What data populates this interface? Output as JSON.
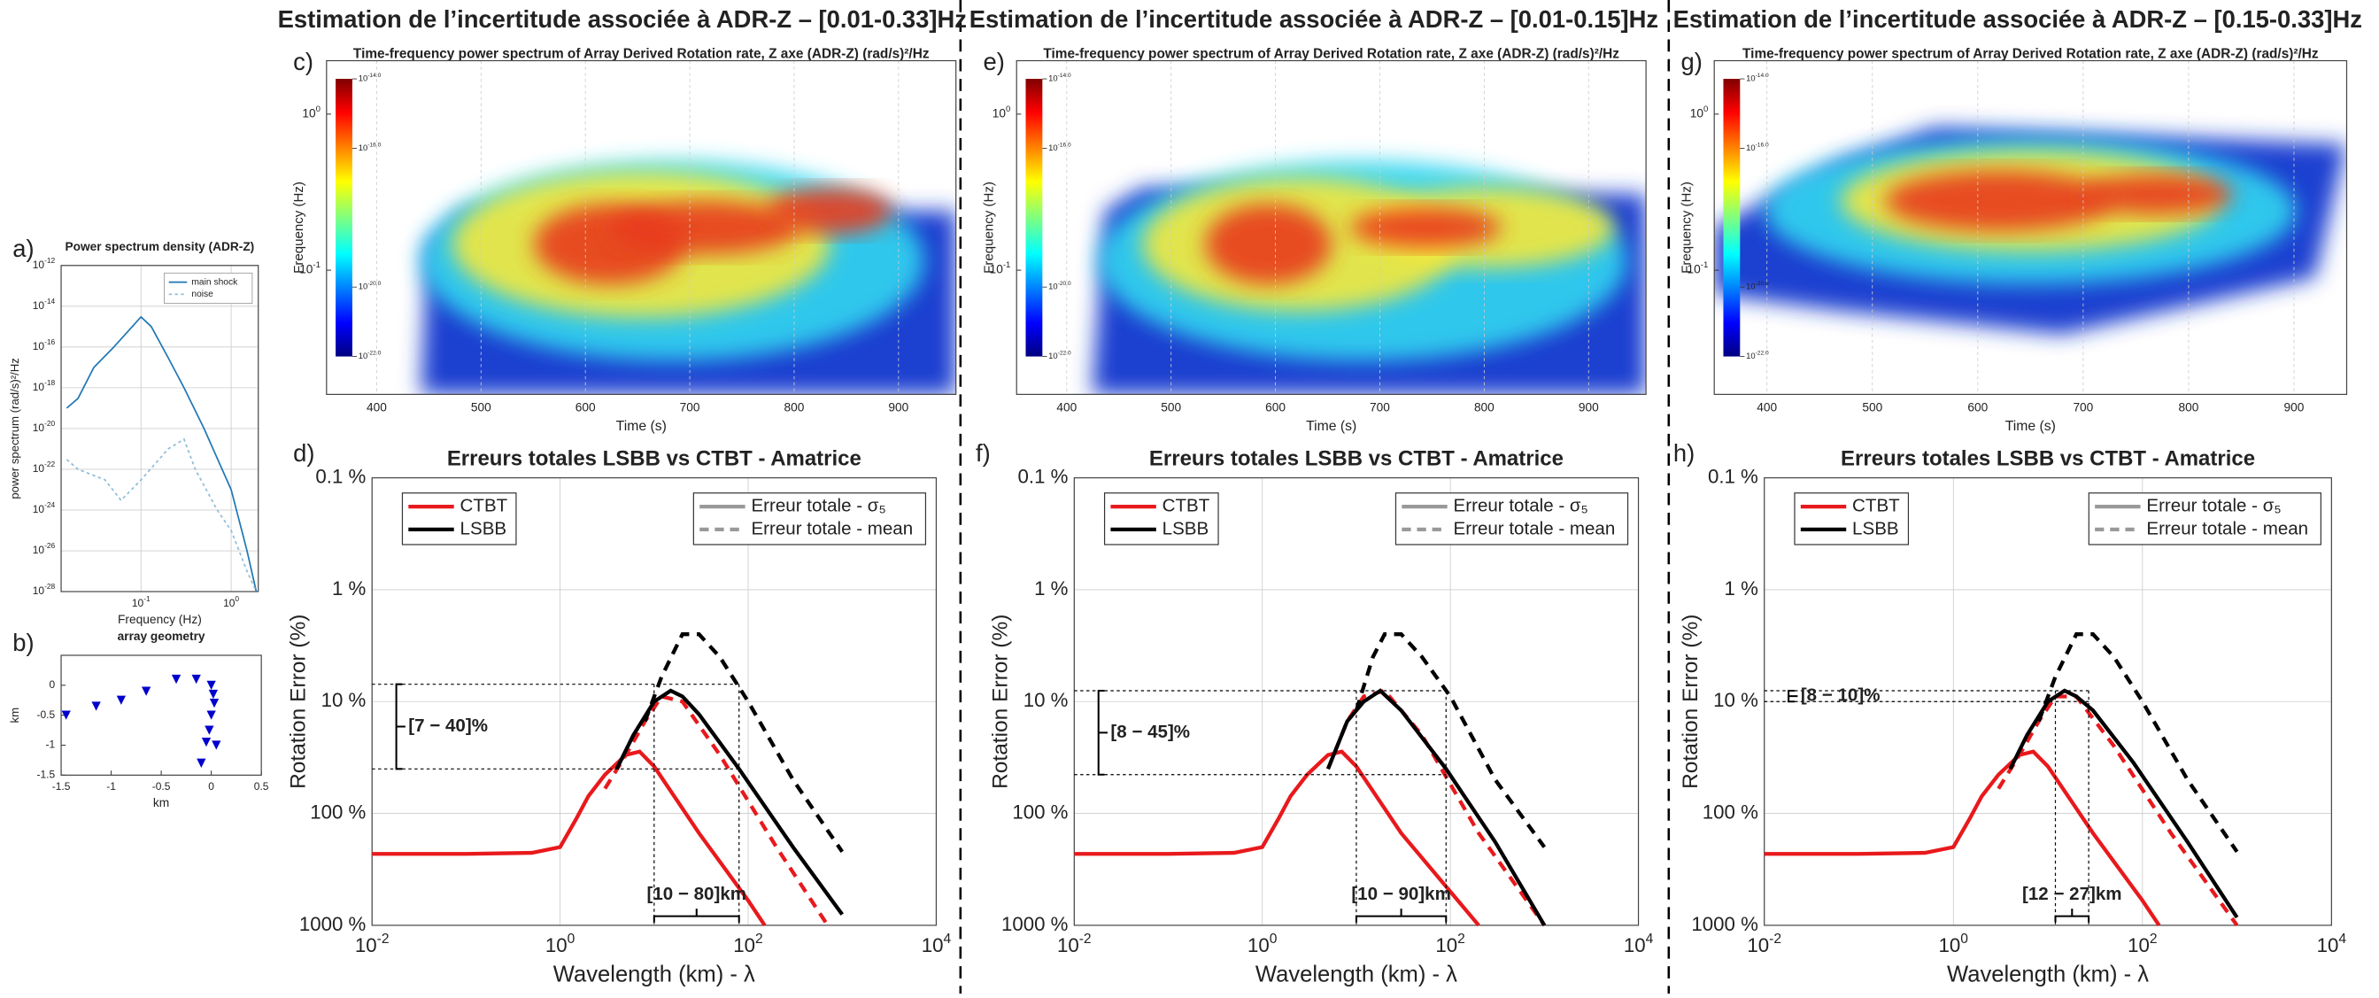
{
  "headers": [
    "Estimation de l’incertitude associée à ADR-Z – [0.01-0.33]Hz",
    "Estimation de l’incertitude associée à ADR-Z – [0.01-0.15]Hz",
    "Estimation de l’incertitude associée à ADR-Z – [0.15-0.33]Hz"
  ],
  "chart_data": [
    {
      "type": "line",
      "label": "a)",
      "title": "Power spectrum density (ADR-Z)",
      "xlabel": "Frequency (Hz)",
      "ylabel": "power spectrum (rad/s)²/Hz",
      "xscale": "log",
      "yscale": "log",
      "grid": true,
      "legend": "upper right",
      "xlim": [
        0.013,
        2
      ],
      "ylim": [
        1e-28,
        1e-12
      ],
      "xticks": [
        {
          "value": 0.1,
          "label": "10^-1"
        },
        {
          "value": 1,
          "label": "10^0"
        }
      ],
      "yticks": [
        {
          "value": 1e-28,
          "label": "10^-28"
        },
        {
          "value": 1e-26,
          "label": "10^-26"
        },
        {
          "value": 1e-24,
          "label": "10^-24"
        },
        {
          "value": 1e-22,
          "label": "10^-22"
        },
        {
          "value": 1e-20,
          "label": "10^-20"
        },
        {
          "value": 1e-18,
          "label": "10^-18"
        },
        {
          "value": 1e-16,
          "label": "10^-16"
        },
        {
          "value": 1e-14,
          "label": "10^-14"
        },
        {
          "value": 1e-12,
          "label": "10^-12"
        }
      ],
      "series": [
        {
          "name": "main shock",
          "color": "#1f77b4",
          "dash": false,
          "x": [
            0.015,
            0.02,
            0.03,
            0.05,
            0.08,
            0.1,
            0.13,
            0.2,
            0.3,
            0.5,
            1,
            1.5,
            1.9
          ],
          "values": [
            1e-19,
            3e-19,
            1e-17,
            1e-16,
            1e-15,
            3e-15,
            1e-15,
            3e-17,
            1e-18,
            1e-20,
            1e-23,
            1e-26,
            1e-28
          ]
        },
        {
          "name": "noise",
          "color": "#8fbcd8",
          "dash": true,
          "x": [
            0.015,
            0.02,
            0.04,
            0.06,
            0.1,
            0.2,
            0.3,
            0.4,
            0.7,
            1,
            1.5,
            1.9
          ],
          "values": [
            3e-22,
            1e-22,
            3e-23,
            3e-24,
            3e-23,
            1e-21,
            3e-21,
            1e-22,
            1e-24,
            1e-25,
            1e-27,
            1e-28
          ]
        }
      ]
    },
    {
      "type": "scatter",
      "label": "b)",
      "title": "array geometry",
      "xlabel": "km",
      "ylabel": "km",
      "xlim": [
        -1.5,
        0.5
      ],
      "ylim": [
        -1.5,
        0.5
      ],
      "grid": false,
      "xticks": [
        -1.5,
        -1,
        -0.5,
        0,
        0.5
      ],
      "yticks": [
        -1.5,
        -1,
        -0.5,
        0
      ],
      "series": [
        {
          "color": "#0000cc",
          "x": [
            -1.45,
            -1.15,
            -0.9,
            -0.65,
            -0.35,
            -0.15,
            0,
            0.02,
            0.03,
            0,
            -0.02,
            0.05,
            -0.05,
            -0.1
          ],
          "values": [
            -0.5,
            -0.35,
            -0.25,
            -0.1,
            0.1,
            0.1,
            0,
            -0.15,
            -0.3,
            -0.5,
            -0.75,
            -1,
            -0.95,
            -1.3
          ]
        }
      ]
    },
    {
      "type": "heatmap",
      "label": "c)",
      "title": "Time-frequency power spectrum of Array Derived Rotation rate, Z axe (ADR-Z) (rad/s)²/Hz",
      "xlabel": "Time (s)",
      "ylabel": "Frequency (Hz)",
      "yscale": "log",
      "xlim": [
        352,
        955
      ],
      "ylim": [
        0.016,
        2.2
      ],
      "xticks": [
        400,
        500,
        600,
        700,
        800,
        900
      ],
      "yticks": [
        {
          "value": 0.1,
          "label": "10^-1"
        },
        {
          "value": 1,
          "label": "10^0"
        }
      ],
      "clim": [
        -22,
        -14
      ],
      "cticks": [
        {
          "value": -14,
          "label": "10^-14.0"
        },
        {
          "value": -16,
          "label": "10^-16.0"
        },
        {
          "value": -20,
          "label": "10^-20.0"
        },
        {
          "value": -22,
          "label": "10^-22.0"
        }
      ]
    },
    {
      "type": "line",
      "label": "d)",
      "title": "Erreurs totales LSBB vs CTBT - Amatrice",
      "xlabel": "Wavelength (km) - λ",
      "ylabel": "Rotation Error (%)",
      "xscale": "log",
      "yscale": "log",
      "yreversed": true,
      "grid": true,
      "xlim": [
        0.01,
        10000
      ],
      "ylim": [
        0.1,
        1000
      ],
      "xticks": [
        {
          "value": 0.01,
          "label": "10^-2"
        },
        {
          "value": 1,
          "label": "10^0"
        },
        {
          "value": 100,
          "label": "10^2"
        },
        {
          "value": 10000,
          "label": "10^4"
        }
      ],
      "yticks": [
        {
          "value": 0.1,
          "label": "0.1 %"
        },
        {
          "value": 1,
          "label": "1 %"
        },
        {
          "value": 10,
          "label": "10 %"
        },
        {
          "value": 100,
          "label": "100 %"
        },
        {
          "value": 1000,
          "label": "1000 %"
        }
      ],
      "legend_colors": [
        {
          "label": "CTBT",
          "color": "#e8191c"
        },
        {
          "label": "LSBB",
          "color": "#000000"
        }
      ],
      "legend_styles": [
        {
          "label": "Erreur totale - σ₅",
          "dash": false
        },
        {
          "label": "Erreur totale - mean",
          "dash": true
        }
      ],
      "error_range": [
        7,
        40
      ],
      "error_label": "[7 − 40]%",
      "wavelength_range": [
        10,
        80
      ],
      "wavelength_label": "[10 − 80]km",
      "series": [
        {
          "color": "#e8191c",
          "dash": false,
          "x": [
            0.01,
            0.1,
            0.5,
            1,
            1.5,
            2,
            3,
            5,
            7,
            10,
            30,
            100,
            150
          ],
          "values": [
            230,
            230,
            225,
            200,
            110,
            70,
            45,
            30,
            28,
            38,
            150,
            600,
            1000
          ]
        },
        {
          "color": "#e8191c",
          "dash": true,
          "x": [
            3,
            5,
            8,
            12,
            20,
            50,
            200,
            700
          ],
          "values": [
            60,
            30,
            15,
            9,
            10,
            30,
            200,
            1000
          ]
        },
        {
          "color": "#000000",
          "dash": false,
          "x": [
            4,
            6,
            10,
            15,
            20,
            30,
            80,
            300,
            1000
          ],
          "values": [
            40,
            20,
            10,
            8,
            9,
            13,
            40,
            200,
            800
          ]
        },
        {
          "color": "#000000",
          "dash": true,
          "x": [
            8,
            12,
            20,
            30,
            50,
            100,
            300,
            1000
          ],
          "values": [
            15,
            6,
            2.5,
            2.5,
            4,
            10,
            50,
            220
          ]
        }
      ]
    },
    {
      "type": "heatmap",
      "label": "e)",
      "title": "Time-frequency power spectrum of Array Derived Rotation rate, Z axe (ADR-Z) (rad/s)²/Hz",
      "xlabel": "Time (s)",
      "ylabel": "Frequency (Hz)",
      "yscale": "log",
      "xlim": [
        352,
        955
      ],
      "ylim": [
        0.016,
        2.2
      ],
      "xticks": [
        400,
        500,
        600,
        700,
        800,
        900
      ],
      "yticks": [
        {
          "value": 0.1,
          "label": "10^-1"
        },
        {
          "value": 1,
          "label": "10^0"
        }
      ],
      "clim": [
        -22,
        -14
      ],
      "cticks": [
        {
          "value": -14,
          "label": "10^-14.0"
        },
        {
          "value": -16,
          "label": "10^-16.0"
        },
        {
          "value": -20,
          "label": "10^-20.0"
        },
        {
          "value": -22,
          "label": "10^-22.0"
        }
      ]
    },
    {
      "type": "line",
      "label": "f)",
      "title": "Erreurs totales LSBB vs CTBT - Amatrice",
      "xlabel": "Wavelength (km) - λ",
      "ylabel": "Rotation Error (%)",
      "xscale": "log",
      "yscale": "log",
      "yreversed": true,
      "grid": true,
      "xlim": [
        0.01,
        10000
      ],
      "ylim": [
        0.1,
        1000
      ],
      "xticks": [
        {
          "value": 0.01,
          "label": "10^-2"
        },
        {
          "value": 1,
          "label": "10^0"
        },
        {
          "value": 100,
          "label": "10^2"
        },
        {
          "value": 10000,
          "label": "10^4"
        }
      ],
      "yticks": [
        {
          "value": 0.1,
          "label": "0.1 %"
        },
        {
          "value": 1,
          "label": "1 %"
        },
        {
          "value": 10,
          "label": "10 %"
        },
        {
          "value": 100,
          "label": "100 %"
        },
        {
          "value": 1000,
          "label": "1000 %"
        }
      ],
      "legend_colors": [
        {
          "label": "CTBT",
          "color": "#e8191c"
        },
        {
          "label": "LSBB",
          "color": "#000000"
        }
      ],
      "legend_styles": [
        {
          "label": "Erreur totale - σ₅",
          "dash": false
        },
        {
          "label": "Erreur totale - mean",
          "dash": true
        }
      ],
      "error_range": [
        8,
        45
      ],
      "error_label": "[8 − 45]%",
      "wavelength_range": [
        10,
        90
      ],
      "wavelength_label": "[10 − 90]km",
      "series": [
        {
          "color": "#e8191c",
          "dash": false,
          "x": [
            0.01,
            0.1,
            0.5,
            1,
            1.5,
            2,
            3,
            5,
            7,
            10,
            30,
            100,
            200
          ],
          "values": [
            230,
            230,
            225,
            200,
            110,
            70,
            45,
            30,
            28,
            38,
            150,
            500,
            1000
          ]
        },
        {
          "color": "#e8191c",
          "dash": true,
          "x": [
            5,
            8,
            12,
            20,
            50,
            200,
            1000
          ],
          "values": [
            40,
            15,
            9,
            8,
            20,
            150,
            1000
          ]
        },
        {
          "color": "#000000",
          "dash": false,
          "x": [
            5,
            8,
            12,
            18,
            30,
            90,
            300,
            1000
          ],
          "values": [
            40,
            15,
            10,
            8,
            12,
            40,
            180,
            1000
          ]
        },
        {
          "color": "#000000",
          "dash": true,
          "x": [
            10,
            15,
            20,
            30,
            50,
            100,
            300,
            1000
          ],
          "values": [
            12,
            4,
            2.5,
            2.5,
            4,
            9,
            50,
            200
          ]
        }
      ]
    },
    {
      "type": "heatmap",
      "label": "g)",
      "title": "Time-frequency power spectrum of Array Derived Rotation rate, Z axe (ADR-Z) (rad/s)²/Hz",
      "xlabel": "Time (s)",
      "ylabel": "Frequency (Hz)",
      "yscale": "log",
      "xlim": [
        350,
        950
      ],
      "ylim": [
        0.016,
        2.2
      ],
      "xticks": [
        400,
        500,
        600,
        700,
        800,
        900
      ],
      "yticks": [
        {
          "value": 0.1,
          "label": "10^-1"
        },
        {
          "value": 1,
          "label": "10^0"
        }
      ],
      "clim": [
        -22,
        -14
      ],
      "cticks": [
        {
          "value": -14,
          "label": "10^-14.0"
        },
        {
          "value": -16,
          "label": "10^-16.0"
        },
        {
          "value": -20,
          "label": "10^-20.0"
        },
        {
          "value": -22,
          "label": "10^-22.0"
        }
      ]
    },
    {
      "type": "line",
      "label": "h)",
      "title": "Erreurs totales LSBB vs CTBT - Amatrice",
      "xlabel": "Wavelength (km) - λ",
      "ylabel": "Rotation Error (%)",
      "xscale": "log",
      "yscale": "log",
      "yreversed": true,
      "grid": true,
      "xlim": [
        0.01,
        10000
      ],
      "ylim": [
        0.1,
        1000
      ],
      "xticks": [
        {
          "value": 0.01,
          "label": "10^-2"
        },
        {
          "value": 1,
          "label": "10^0"
        },
        {
          "value": 100,
          "label": "10^2"
        },
        {
          "value": 10000,
          "label": "10^4"
        }
      ],
      "yticks": [
        {
          "value": 0.1,
          "label": "0.1 %"
        },
        {
          "value": 1,
          "label": "1 %"
        },
        {
          "value": 10,
          "label": "10 %"
        },
        {
          "value": 100,
          "label": "100 %"
        },
        {
          "value": 1000,
          "label": "1000 %"
        }
      ],
      "legend_colors": [
        {
          "label": "CTBT",
          "color": "#e8191c"
        },
        {
          "label": "LSBB",
          "color": "#000000"
        }
      ],
      "legend_styles": [
        {
          "label": "Erreur totale - σ₅",
          "dash": false
        },
        {
          "label": "Erreur totale - mean",
          "dash": true
        }
      ],
      "error_range": [
        8,
        10
      ],
      "error_label": "[8 − 10]%",
      "wavelength_range": [
        12,
        27
      ],
      "wavelength_label": "[12 − 27]km",
      "series": [
        {
          "color": "#e8191c",
          "dash": false,
          "x": [
            0.01,
            0.1,
            0.5,
            1,
            1.5,
            2,
            3,
            5,
            7,
            10,
            30,
            100,
            150
          ],
          "values": [
            230,
            230,
            225,
            200,
            110,
            70,
            45,
            30,
            28,
            38,
            150,
            600,
            1000
          ]
        },
        {
          "color": "#e8191c",
          "dash": true,
          "x": [
            3,
            5,
            8,
            12,
            20,
            50,
            200,
            1000
          ],
          "values": [
            60,
            30,
            15,
            9,
            9,
            25,
            150,
            1000
          ]
        },
        {
          "color": "#000000",
          "dash": false,
          "x": [
            4,
            6,
            10,
            15,
            20,
            30,
            80,
            300,
            1000
          ],
          "values": [
            40,
            20,
            10,
            8,
            9,
            12,
            35,
            180,
            850
          ]
        },
        {
          "color": "#000000",
          "dash": true,
          "x": [
            8,
            12,
            20,
            30,
            50,
            100,
            300,
            1000
          ],
          "values": [
            15,
            6,
            2.5,
            2.5,
            4,
            10,
            50,
            220
          ]
        }
      ]
    }
  ]
}
